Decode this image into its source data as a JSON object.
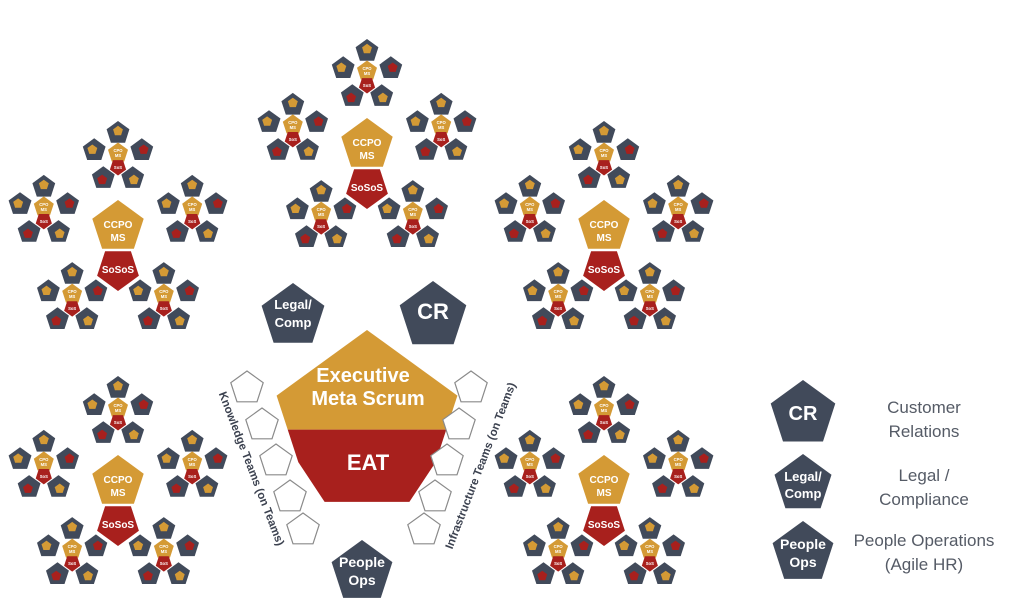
{
  "colors": {
    "navy": "#414a5a",
    "gold": "#d49a35",
    "red": "#a8201d",
    "outline": "#8a8a8a"
  },
  "center": {
    "top_line1": "Executive",
    "top_line2": "Meta Scrum",
    "bottom": "EAT"
  },
  "central_groups": {
    "legal_line1": "Legal/",
    "legal_line2": "Comp",
    "cr": "CR",
    "people_line1": "People",
    "people_line2": "Ops"
  },
  "side_labels": {
    "knowledge": "Knowledge Teams (on Teams)",
    "infrastructure": "Infrastructure Teams (on Teams)"
  },
  "scaled_units": {
    "top_label_line1": "CCPO",
    "top_label_line2": "MS",
    "bottom_label": "SoSoS",
    "unit_top_line1": "CPO",
    "unit_top_line2": "MS",
    "unit_bottom": "SoS"
  },
  "legend": [
    {
      "icon_line1": "CR",
      "icon_line2": "",
      "text_line1": "Customer",
      "text_line2": "Relations"
    },
    {
      "icon_line1": "Legal/",
      "icon_line2": "Comp",
      "text_line1": "Legal /",
      "text_line2": "Compliance"
    },
    {
      "icon_line1": "People",
      "icon_line2": "Ops",
      "text_line1": "People Operations",
      "text_line2": "(Agile HR)"
    }
  ]
}
